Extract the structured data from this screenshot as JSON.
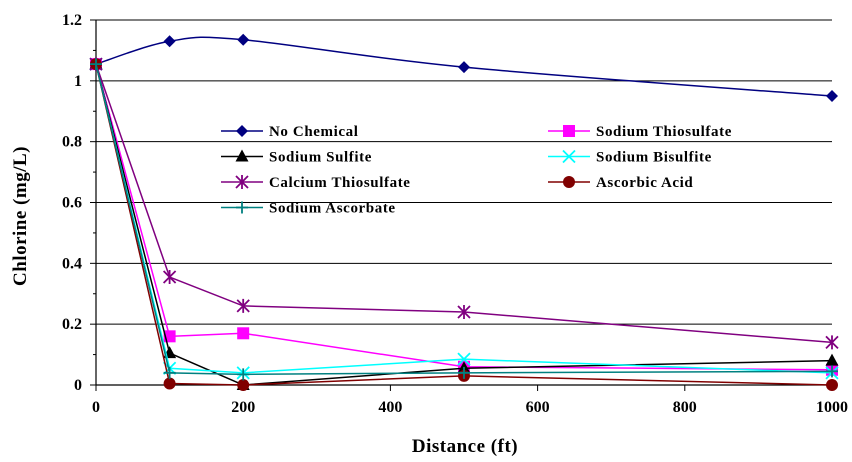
{
  "chart_data": {
    "type": "line",
    "xlabel": "Distance (ft)",
    "ylabel": "Chlorine (mg/L)",
    "xlim": [
      0,
      1000
    ],
    "ylim": [
      0,
      1.2
    ],
    "x_ticks": [
      0,
      200,
      400,
      600,
      800,
      1000
    ],
    "y_ticks": [
      0,
      0.2,
      0.4,
      0.6,
      0.8,
      1,
      1.2
    ],
    "x_tick_labels": [
      "0",
      "200",
      "400",
      "600",
      "800",
      "1000"
    ],
    "y_tick_labels": [
      "0",
      "0.2",
      "0.4",
      "0.6",
      "0.8",
      "1",
      "1.2"
    ],
    "grid": "horizontal",
    "legend_position": "inside-center",
    "series": [
      {
        "name": "No Chemical",
        "color": "#000080",
        "marker": "diamond",
        "smooth": true,
        "x": [
          0,
          100,
          200,
          500,
          1000
        ],
        "values": [
          1.055,
          1.13,
          1.135,
          1.045,
          0.95
        ]
      },
      {
        "name": "Sodium Thiosulfate",
        "color": "#FF00FF",
        "marker": "square",
        "x": [
          0,
          100,
          200,
          500,
          1000
        ],
        "values": [
          1.055,
          0.16,
          0.17,
          0.06,
          0.05
        ]
      },
      {
        "name": "Sodium Sulfite",
        "color": "#000000",
        "marker": "triangle",
        "x": [
          0,
          100,
          200,
          500,
          1000
        ],
        "values": [
          1.055,
          0.105,
          0.0,
          0.055,
          0.08
        ]
      },
      {
        "name": "Sodium Bisulfite",
        "color": "#00FFFF",
        "marker": "x",
        "x": [
          0,
          100,
          200,
          500,
          1000
        ],
        "values": [
          1.055,
          0.055,
          0.04,
          0.085,
          0.04
        ]
      },
      {
        "name": "Calcium Thiosulfate",
        "color": "#800080",
        "marker": "star",
        "x": [
          0,
          100,
          200,
          500,
          1000
        ],
        "values": [
          1.055,
          0.355,
          0.26,
          0.24,
          0.14
        ]
      },
      {
        "name": "Ascorbic Acid",
        "color": "#800000",
        "marker": "circle",
        "x": [
          0,
          100,
          200,
          500,
          1000
        ],
        "values": [
          1.055,
          0.005,
          0.0,
          0.03,
          0.0
        ]
      },
      {
        "name": "Sodium Ascorbate",
        "color": "#008080",
        "marker": "plus",
        "x": [
          0,
          100,
          200,
          500,
          1000
        ],
        "values": [
          1.055,
          0.04,
          0.035,
          0.04,
          0.045
        ]
      }
    ]
  }
}
